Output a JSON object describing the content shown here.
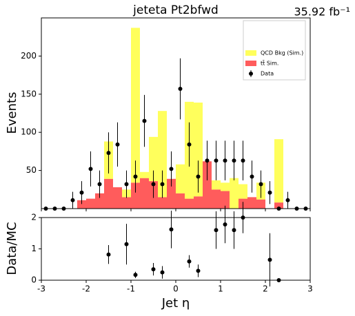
{
  "chart_data": [
    {
      "type": "histogram",
      "title": "jeteta  Pt2bfwd",
      "annotation": "35.92 fb⁻¹",
      "ylabel": "Events",
      "bins": [
        -3,
        -2.8,
        -2.6,
        -2.4,
        -2.2,
        -2,
        -1.8,
        -1.6,
        -1.4,
        -1.2,
        -1,
        -0.8,
        -0.6,
        -0.4,
        -0.2,
        0,
        0.2,
        0.4,
        0.6,
        0.8,
        1,
        1.2,
        1.4,
        1.6,
        1.8,
        2,
        2.2,
        2.4,
        2.6,
        2.8,
        3
      ],
      "stacked": true,
      "series": [
        {
          "name": "tt̄ Sim.",
          "color": "#ff3333",
          "values": [
            0,
            0,
            0,
            0,
            11,
            13,
            20,
            39,
            28,
            15,
            34,
            40,
            36,
            15,
            39,
            20,
            13,
            16,
            62,
            25,
            23,
            0,
            13,
            15,
            12,
            0,
            8,
            0,
            0,
            0
          ]
        },
        {
          "name": "QCD Bkg (Sim.)",
          "color": "#ffff33",
          "values": [
            0,
            0,
            0,
            0,
            0,
            0,
            0,
            49,
            0,
            10,
            203,
            8,
            58,
            113,
            0,
            38,
            127,
            123,
            0,
            12,
            11,
            40,
            19,
            0,
            22,
            0,
            83,
            0,
            0,
            0
          ]
        }
      ],
      "data": {
        "name": "Data",
        "color": "#000000",
        "x": [
          -2.9,
          -2.7,
          -2.5,
          -2.3,
          -2.1,
          -1.9,
          -1.7,
          -1.5,
          -1.3,
          -1.1,
          -0.9,
          -0.7,
          -0.5,
          -0.3,
          -0.1,
          0.1,
          0.3,
          0.5,
          0.7,
          0.9,
          1.1,
          1.3,
          1.5,
          1.7,
          1.9,
          2.1,
          2.3,
          2.5,
          2.7,
          2.9
        ],
        "values": [
          0,
          0,
          0,
          11,
          21,
          52,
          32,
          73,
          84,
          32,
          42,
          115,
          32,
          32,
          52,
          157,
          84,
          42,
          63,
          63,
          63,
          63,
          63,
          42,
          32,
          21,
          0,
          11,
          0,
          0
        ],
        "errors": [
          0,
          0,
          0,
          11,
          15,
          23,
          18,
          27,
          29,
          18,
          21,
          34,
          18,
          18,
          23,
          40,
          29,
          21,
          26,
          26,
          26,
          26,
          26,
          21,
          18,
          15,
          0,
          11,
          0,
          0
        ]
      },
      "xlim": [
        -3,
        3
      ],
      "xticks": [
        -3,
        -2,
        -1,
        0,
        1,
        2,
        3
      ],
      "ylim": [
        0,
        250
      ],
      "yticks": [
        50,
        100,
        150,
        200
      ],
      "legend": "upper right"
    },
    {
      "type": "ratio",
      "ylabel": "Data/MC",
      "xlabel": "Jet η",
      "x": [
        -2.9,
        -2.7,
        -2.5,
        -2.3,
        -2.1,
        -1.9,
        -1.7,
        -1.5,
        -1.3,
        -1.1,
        -0.9,
        -0.7,
        -0.5,
        -0.3,
        -0.1,
        0.1,
        0.3,
        0.5,
        0.7,
        0.9,
        1.1,
        1.3,
        1.5,
        1.7,
        1.9,
        2.1,
        2.3,
        2.5,
        2.7,
        2.9
      ],
      "values": [
        null,
        null,
        null,
        null,
        null,
        null,
        null,
        0.82,
        null,
        1.15,
        0.17,
        null,
        0.35,
        0.25,
        1.62,
        null,
        0.6,
        0.3,
        null,
        1.6,
        1.78,
        1.6,
        2.0,
        null,
        null,
        0.65,
        0.0,
        null,
        null,
        null
      ],
      "errors": [
        null,
        null,
        null,
        null,
        null,
        null,
        null,
        0.3,
        null,
        0.65,
        0.1,
        null,
        0.2,
        0.2,
        0.6,
        null,
        0.2,
        0.2,
        null,
        0.6,
        0.6,
        0.6,
        0.5,
        null,
        null,
        0.85,
        0,
        null,
        null,
        null
      ],
      "color": "#000000",
      "xlim": [
        -3,
        3
      ],
      "xticks": [
        -3,
        -2,
        -1,
        0,
        1,
        2,
        3
      ],
      "ylim": [
        0,
        2
      ],
      "yticks": [
        0,
        1,
        2
      ]
    }
  ]
}
